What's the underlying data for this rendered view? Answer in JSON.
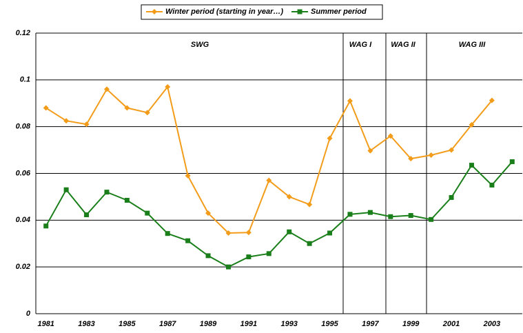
{
  "chart_data": {
    "type": "line",
    "categories": [
      "1981",
      null,
      "1983",
      null,
      "1985",
      null,
      "1987",
      null,
      "1989",
      null,
      "1991",
      null,
      "1993",
      null,
      "1995",
      null,
      "1997",
      null,
      "1999",
      null,
      "2001",
      null,
      "2003",
      null
    ],
    "series": [
      {
        "name": "Winter period (starting in year…)",
        "color": "#f39c1a",
        "marker": "diamond",
        "values": [
          0.088,
          0.0825,
          0.081,
          0.096,
          0.088,
          0.086,
          0.097,
          0.059,
          0.043,
          0.0345,
          0.0347,
          0.057,
          0.05,
          0.0467,
          0.075,
          0.091,
          0.0697,
          0.076,
          0.0663,
          0.0678,
          0.07,
          0.0808,
          0.0912,
          null
        ]
      },
      {
        "name": "Summer period",
        "color": "#1a7f1a",
        "marker": "square",
        "values": [
          0.0375,
          0.053,
          0.0423,
          0.052,
          0.0485,
          0.043,
          0.0343,
          0.0312,
          0.0248,
          0.02,
          0.0243,
          0.0257,
          0.035,
          0.03,
          0.0345,
          0.0425,
          0.0433,
          0.0415,
          0.042,
          0.0403,
          0.0497,
          0.0635,
          0.055,
          0.065
        ]
      }
    ],
    "ylim": [
      0,
      0.12
    ],
    "yticks": [
      0,
      0.02,
      0.04,
      0.06,
      0.08,
      0.1,
      0.12
    ],
    "grid": true,
    "legend": "top",
    "periods": [
      "SWG",
      "WAG I",
      "WAG II",
      "WAG III"
    ]
  }
}
